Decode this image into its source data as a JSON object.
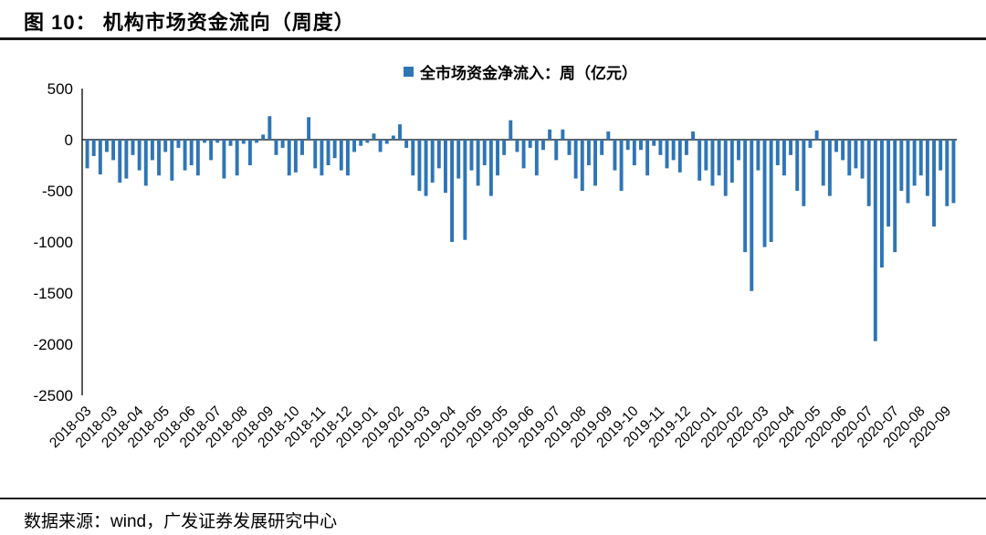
{
  "header": {
    "title": "图 10： 机构市场资金流向（周度）"
  },
  "footer": {
    "source": "数据来源：wind，广发证券发展研究中心"
  },
  "chart_data": {
    "type": "bar",
    "legend": "全市场资金净流入：周（亿元）",
    "title": "机构市场资金流向（周度）",
    "xlabel": "",
    "ylabel": "亿元",
    "bar_color": "#2E75B6",
    "axis_color": "#000000",
    "ylim": [
      -2500,
      500
    ],
    "yticks": [
      500,
      0,
      -500,
      -1000,
      -1500,
      -2000,
      -2500
    ],
    "grid": false,
    "legend_position": "top-center",
    "x_tick_every": 4,
    "x_tick_labels": [
      "2018-03",
      "2018-03",
      "2018-04",
      "2018-05",
      "2018-06",
      "2018-07",
      "2018-08",
      "2018-09",
      "2018-10",
      "2018-11",
      "2018-12",
      "2019-01",
      "2019-02",
      "2019-03",
      "2019-04",
      "2019-05",
      "2019-05",
      "2019-06",
      "2019-07",
      "2019-08",
      "2019-09",
      "2019-10",
      "2019-11",
      "2019-12",
      "2020-01",
      "2020-02",
      "2020-03",
      "2020-04",
      "2020-05",
      "2020-06",
      "2020-07",
      "2020-07",
      "2020-08",
      "2020-09"
    ],
    "values": [
      -280,
      -160,
      -340,
      -120,
      -200,
      -420,
      -380,
      -150,
      -300,
      -450,
      -200,
      -350,
      -120,
      -400,
      -80,
      -300,
      -250,
      -350,
      -30,
      -200,
      -30,
      -380,
      -60,
      -350,
      -40,
      -250,
      -30,
      50,
      230,
      -150,
      -80,
      -350,
      -320,
      -150,
      220,
      -280,
      -350,
      -250,
      -180,
      -300,
      -350,
      -120,
      -60,
      -30,
      60,
      -120,
      -40,
      40,
      150,
      -80,
      -350,
      -500,
      -550,
      -420,
      -280,
      -520,
      -1000,
      -380,
      -980,
      -300,
      -450,
      -250,
      -550,
      -350,
      -150,
      190,
      -120,
      -280,
      -80,
      -350,
      -100,
      100,
      -200,
      100,
      -150,
      -380,
      -500,
      -250,
      -450,
      -150,
      80,
      -300,
      -500,
      -100,
      -250,
      -100,
      -350,
      -60,
      -150,
      -280,
      -200,
      -320,
      -150,
      80,
      -400,
      -300,
      -450,
      -350,
      -550,
      -420,
      -200,
      -1100,
      -1480,
      -300,
      -1050,
      -1000,
      -250,
      -350,
      -150,
      -500,
      -650,
      -80,
      90,
      -450,
      -550,
      -120,
      -200,
      -350,
      -280,
      -380,
      -650,
      -1970,
      -1250,
      -850,
      -1100,
      -500,
      -620,
      -450,
      -350,
      -550,
      -850,
      -300,
      -650,
      -620
    ]
  }
}
